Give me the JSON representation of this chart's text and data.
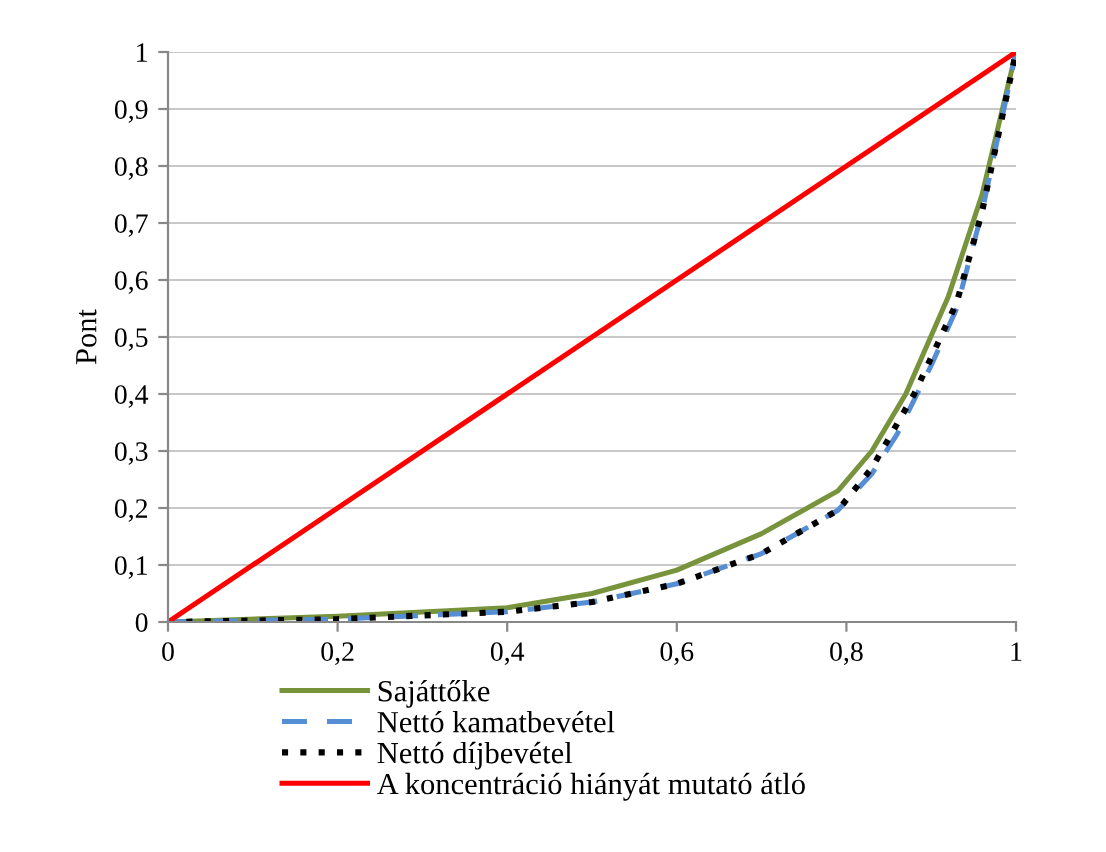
{
  "chart_data": {
    "type": "line",
    "ylabel": "Pont",
    "xlim": [
      0,
      1
    ],
    "ylim": [
      0,
      1
    ],
    "xticks": [
      0,
      {
        "value": 0.2,
        "label": "0,2"
      },
      {
        "value": 0.4,
        "label": "0,4"
      },
      {
        "value": 0.6,
        "label": "0,6"
      },
      {
        "value": 0.8,
        "label": "0,8"
      },
      1
    ],
    "yticks": [
      0,
      {
        "value": 0.1,
        "label": "0,1"
      },
      {
        "value": 0.2,
        "label": "0,2"
      },
      {
        "value": 0.3,
        "label": "0,3"
      },
      {
        "value": 0.4,
        "label": "0,4"
      },
      {
        "value": 0.5,
        "label": "0,5"
      },
      {
        "value": 0.6,
        "label": "0,6"
      },
      {
        "value": 0.7,
        "label": "0,7"
      },
      {
        "value": 0.8,
        "label": "0,8"
      },
      {
        "value": 0.9,
        "label": "0,9"
      },
      1
    ],
    "grid": "y",
    "legend": "bottom",
    "series": [
      {
        "name": "Sajáttőke",
        "color": "#77933c",
        "line_style": "solid",
        "x": [
          0,
          0.2,
          0.4,
          0.5,
          0.6,
          0.7,
          0.79,
          0.83,
          0.87,
          0.92,
          0.96,
          1
        ],
        "values": [
          0,
          0.01,
          0.025,
          0.05,
          0.091,
          0.155,
          0.23,
          0.3,
          0.4,
          0.57,
          0.75,
          1
        ]
      },
      {
        "name": "Nettó kamatbevétel",
        "color": "#558ed5",
        "line_style": "dashed",
        "x": [
          0,
          0.2,
          0.4,
          0.5,
          0.6,
          0.7,
          0.79,
          0.83,
          0.86,
          0.9,
          0.93,
          0.96,
          1
        ],
        "values": [
          0,
          0.005,
          0.018,
          0.035,
          0.067,
          0.12,
          0.196,
          0.26,
          0.33,
          0.45,
          0.55,
          0.72,
          1
        ]
      },
      {
        "name": "Nettó díjbevétel",
        "color": "#000000",
        "line_style": "dotted",
        "x": [
          0,
          0.2,
          0.4,
          0.5,
          0.6,
          0.7,
          0.79,
          0.83,
          0.88,
          0.93,
          0.96,
          1
        ],
        "values": [
          0,
          0.005,
          0.018,
          0.035,
          0.067,
          0.12,
          0.196,
          0.27,
          0.4,
          0.56,
          0.72,
          1
        ]
      },
      {
        "name": "A koncentráció hiányát mutató átló",
        "color": "#ff0000",
        "line_style": "solid",
        "x": [
          0,
          1
        ],
        "values": [
          0,
          1
        ]
      }
    ]
  }
}
